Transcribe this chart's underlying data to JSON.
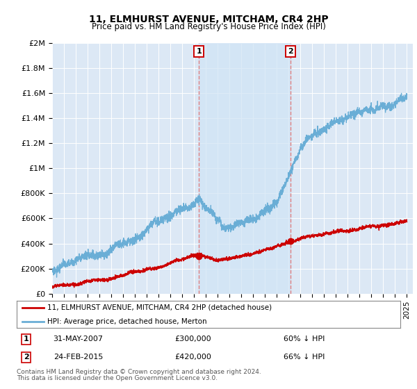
{
  "title": "11, ELMHURST AVENUE, MITCHAM, CR4 2HP",
  "subtitle": "Price paid vs. HM Land Registry's House Price Index (HPI)",
  "ylabel_ticks": [
    "£0",
    "£200K",
    "£400K",
    "£600K",
    "£800K",
    "£1M",
    "£1.2M",
    "£1.4M",
    "£1.6M",
    "£1.8M",
    "£2M"
  ],
  "ytick_values": [
    0,
    200000,
    400000,
    600000,
    800000,
    1000000,
    1200000,
    1400000,
    1600000,
    1800000,
    2000000
  ],
  "xmin": 1995.0,
  "xmax": 2025.5,
  "ymin": 0,
  "ymax": 2000000,
  "sale1_year": 2007.42,
  "sale1_price": 300000,
  "sale1_label": "1",
  "sale1_date": "31-MAY-2007",
  "sale1_amount": "£300,000",
  "sale1_pct": "60% ↓ HPI",
  "sale2_year": 2015.15,
  "sale2_price": 420000,
  "sale2_label": "2",
  "sale2_date": "24-FEB-2015",
  "sale2_amount": "£420,000",
  "sale2_pct": "66% ↓ HPI",
  "hpi_color": "#6aaed6",
  "price_color": "#cc0000",
  "dashed_line_color": "#e08080",
  "shade_color": "#d0e4f5",
  "legend_label_red": "11, ELMHURST AVENUE, MITCHAM, CR4 2HP (detached house)",
  "legend_label_blue": "HPI: Average price, detached house, Merton",
  "footnote1": "Contains HM Land Registry data © Crown copyright and database right 2024.",
  "footnote2": "This data is licensed under the Open Government Licence v3.0.",
  "bg_plot": "#dce8f5",
  "bg_fig": "#ffffff",
  "grid_color": "#ffffff",
  "marker_box_color": "#cc0000"
}
